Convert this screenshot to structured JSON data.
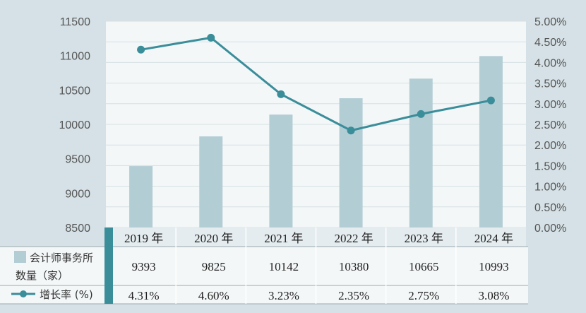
{
  "chart_data": {
    "type": "bar+line",
    "categories": [
      "2019 年",
      "2020 年",
      "2021 年",
      "2022 年",
      "2023 年",
      "2024 年"
    ],
    "series": [
      {
        "name": "会计师事务所数量（家）",
        "legend_lines": [
          "会计师事务所",
          "数量（家）"
        ],
        "type": "bar",
        "axis": "left",
        "values": [
          9393,
          9825,
          10142,
          10380,
          10665,
          10993
        ],
        "value_labels": [
          "9393",
          "9825",
          "10142",
          "10380",
          "10665",
          "10993"
        ],
        "color": "#b3cdd5"
      },
      {
        "name": "增长率 (%)",
        "type": "line",
        "axis": "right",
        "values": [
          4.31,
          4.6,
          3.23,
          2.35,
          2.75,
          3.08
        ],
        "value_labels": [
          "4.31%",
          "4.60%",
          "3.23%",
          "2.35%",
          "2.75%",
          "3.08%"
        ],
        "color": "#3a8e9a"
      }
    ],
    "left_axis": {
      "ylim": [
        8500,
        11500
      ],
      "ticks": [
        "8500",
        "9000",
        "9500",
        "10000",
        "10500",
        "11000",
        "11500"
      ]
    },
    "right_axis": {
      "ylim": [
        0,
        5
      ],
      "ticks": [
        "0.00%",
        "0.50%",
        "1.00%",
        "1.50%",
        "2.00%",
        "2.50%",
        "3.00%",
        "3.50%",
        "4.00%",
        "4.50%",
        "5.00%"
      ]
    },
    "grid": true,
    "data_table": true
  },
  "colors": {
    "background": "#d5e1e6",
    "plot_bg": "#f4f7f8",
    "grid": "#d6e0e4",
    "bar": "#b3cdd5",
    "line": "#3a8e9a",
    "table_band": "#3a8e9a",
    "header_row": "#e4ecef"
  }
}
